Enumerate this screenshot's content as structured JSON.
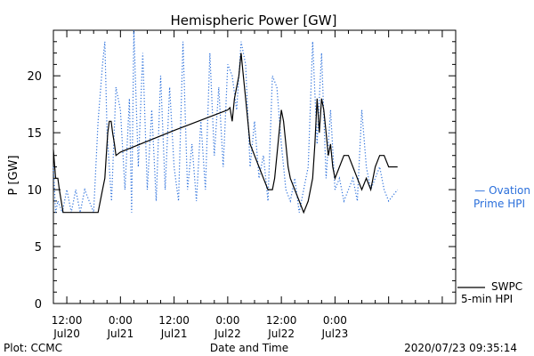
{
  "chart_data": {
    "type": "line",
    "title": "Hemispheric Power [GW]",
    "xlabel": "Date and Time",
    "ylabel": "P [GW]",
    "ylim": [
      0,
      24
    ],
    "y_ticks": [
      0,
      5,
      10,
      15,
      20
    ],
    "x_axis": {
      "start": "2020-07-20T09:00",
      "end": "2020-07-24T03:00",
      "ticks": [
        {
          "time": "2020-07-20T12:00",
          "hour": "12:00",
          "day": "Jul20"
        },
        {
          "time": "2020-07-21T00:00",
          "hour": "0:00",
          "day": "Jul21"
        },
        {
          "time": "2020-07-21T12:00",
          "hour": "12:00",
          "day": "Jul21"
        },
        {
          "time": "2020-07-22T00:00",
          "hour": "0:00",
          "day": "Jul22"
        },
        {
          "time": "2020-07-22T12:00",
          "hour": "12:00",
          "day": "Jul22"
        },
        {
          "time": "2020-07-23T00:00",
          "hour": "0:00",
          "day": "Jul23"
        }
      ]
    },
    "series": [
      {
        "name": "SWPC 5-min HPI",
        "label_lines": [
          "SWPC",
          "5-min HPI"
        ],
        "color": "#000000",
        "style": "solid",
        "points": [
          [
            "2020-07-20T09:00",
            13.5
          ],
          [
            "2020-07-20T09:30",
            11
          ],
          [
            "2020-07-20T10:00",
            11
          ],
          [
            "2020-07-20T10:20",
            10
          ],
          [
            "2020-07-20T10:45",
            9
          ],
          [
            "2020-07-20T11:10",
            8
          ],
          [
            "2020-07-20T14:00",
            8
          ],
          [
            "2020-07-20T17:00",
            8
          ],
          [
            "2020-07-20T19:00",
            8
          ],
          [
            "2020-07-20T19:30",
            9
          ],
          [
            "2020-07-20T20:00",
            10
          ],
          [
            "2020-07-20T20:30",
            11
          ],
          [
            "2020-07-20T20:50",
            13
          ],
          [
            "2020-07-20T21:10",
            15
          ],
          [
            "2020-07-20T21:30",
            16
          ],
          [
            "2020-07-20T21:55",
            16
          ],
          [
            "2020-07-20T22:15",
            15
          ],
          [
            "2020-07-20T22:40",
            14
          ],
          [
            "2020-07-20T23:00",
            13
          ],
          [
            "2020-07-21T00:00",
            13.3
          ],
          [
            "2020-07-21T12:00",
            15.2
          ],
          [
            "2020-07-22T00:00",
            17
          ],
          [
            "2020-07-22T00:30",
            17.2
          ],
          [
            "2020-07-22T01:00",
            16
          ],
          [
            "2020-07-22T01:30",
            18
          ],
          [
            "2020-07-22T02:00",
            19
          ],
          [
            "2020-07-22T02:30",
            20
          ],
          [
            "2020-07-22T03:00",
            22
          ],
          [
            "2020-07-22T03:30",
            20
          ],
          [
            "2020-07-22T04:00",
            18
          ],
          [
            "2020-07-22T04:30",
            16
          ],
          [
            "2020-07-22T05:00",
            14
          ],
          [
            "2020-07-22T06:00",
            13
          ],
          [
            "2020-07-22T07:00",
            12
          ],
          [
            "2020-07-22T08:00",
            11
          ],
          [
            "2020-07-22T09:00",
            10
          ],
          [
            "2020-07-22T10:00",
            10
          ],
          [
            "2020-07-22T10:30",
            11
          ],
          [
            "2020-07-22T11:00",
            13
          ],
          [
            "2020-07-22T11:30",
            15
          ],
          [
            "2020-07-22T12:00",
            17
          ],
          [
            "2020-07-22T12:30",
            16
          ],
          [
            "2020-07-22T13:00",
            14
          ],
          [
            "2020-07-22T13:30",
            12
          ],
          [
            "2020-07-22T14:00",
            11
          ],
          [
            "2020-07-22T15:00",
            10
          ],
          [
            "2020-07-22T16:00",
            9
          ],
          [
            "2020-07-22T17:00",
            8
          ],
          [
            "2020-07-22T18:00",
            9
          ],
          [
            "2020-07-22T19:00",
            11
          ],
          [
            "2020-07-22T19:30",
            14
          ],
          [
            "2020-07-22T20:00",
            18
          ],
          [
            "2020-07-22T20:30",
            15
          ],
          [
            "2020-07-22T21:00",
            18
          ],
          [
            "2020-07-22T21:30",
            17
          ],
          [
            "2020-07-22T22:00",
            15
          ],
          [
            "2020-07-22T22:30",
            13
          ],
          [
            "2020-07-22T23:00",
            14
          ],
          [
            "2020-07-22T23:30",
            12
          ],
          [
            "2020-07-23T00:00",
            11
          ],
          [
            "2020-07-23T01:00",
            12
          ],
          [
            "2020-07-23T02:00",
            13
          ],
          [
            "2020-07-23T03:00",
            13
          ],
          [
            "2020-07-23T04:00",
            12
          ],
          [
            "2020-07-23T05:00",
            11
          ],
          [
            "2020-07-23T06:00",
            10
          ],
          [
            "2020-07-23T07:00",
            11
          ],
          [
            "2020-07-23T08:00",
            10
          ],
          [
            "2020-07-23T09:00",
            12
          ],
          [
            "2020-07-23T10:00",
            13
          ],
          [
            "2020-07-23T11:00",
            13
          ],
          [
            "2020-07-23T12:00",
            12
          ],
          [
            "2020-07-23T14:00",
            12
          ]
        ]
      },
      {
        "name": "Ovation Prime HPI",
        "label_lines": [
          "— Ovation",
          "Prime HPI"
        ],
        "label_value": 10,
        "color": "#2a6fdb",
        "style": "dotted",
        "points": [
          [
            "2020-07-20T09:00",
            12
          ],
          [
            "2020-07-20T09:30",
            8
          ],
          [
            "2020-07-20T10:00",
            9
          ],
          [
            "2020-07-20T11:00",
            8
          ],
          [
            "2020-07-20T12:00",
            10
          ],
          [
            "2020-07-20T13:00",
            8
          ],
          [
            "2020-07-20T14:00",
            10
          ],
          [
            "2020-07-20T15:00",
            8
          ],
          [
            "2020-07-20T16:00",
            10
          ],
          [
            "2020-07-20T17:00",
            9
          ],
          [
            "2020-07-20T18:00",
            8
          ],
          [
            "2020-07-20T19:00",
            16
          ],
          [
            "2020-07-20T20:00",
            21
          ],
          [
            "2020-07-20T20:30",
            23
          ],
          [
            "2020-07-20T21:00",
            15
          ],
          [
            "2020-07-20T22:00",
            9
          ],
          [
            "2020-07-20T23:00",
            19
          ],
          [
            "2020-07-21T00:00",
            17
          ],
          [
            "2020-07-21T01:00",
            10
          ],
          [
            "2020-07-21T02:00",
            18
          ],
          [
            "2020-07-21T02:30",
            8
          ],
          [
            "2020-07-21T03:00",
            24
          ],
          [
            "2020-07-21T04:00",
            12
          ],
          [
            "2020-07-21T05:00",
            22
          ],
          [
            "2020-07-21T06:00",
            10
          ],
          [
            "2020-07-21T07:00",
            17
          ],
          [
            "2020-07-21T08:00",
            9
          ],
          [
            "2020-07-21T09:00",
            20
          ],
          [
            "2020-07-21T10:00",
            10
          ],
          [
            "2020-07-21T11:00",
            19
          ],
          [
            "2020-07-21T12:00",
            12
          ],
          [
            "2020-07-21T13:00",
            9
          ],
          [
            "2020-07-21T14:00",
            23
          ],
          [
            "2020-07-21T15:00",
            10
          ],
          [
            "2020-07-21T16:00",
            14
          ],
          [
            "2020-07-21T17:00",
            9
          ],
          [
            "2020-07-21T18:00",
            16
          ],
          [
            "2020-07-21T19:00",
            10
          ],
          [
            "2020-07-21T20:00",
            22
          ],
          [
            "2020-07-21T21:00",
            13
          ],
          [
            "2020-07-21T22:00",
            19
          ],
          [
            "2020-07-21T23:00",
            12
          ],
          [
            "2020-07-22T00:00",
            21
          ],
          [
            "2020-07-22T01:00",
            20
          ],
          [
            "2020-07-22T02:00",
            17
          ],
          [
            "2020-07-22T03:00",
            23
          ],
          [
            "2020-07-22T04:00",
            21
          ],
          [
            "2020-07-22T05:00",
            12
          ],
          [
            "2020-07-22T06:00",
            16
          ],
          [
            "2020-07-22T07:00",
            11
          ],
          [
            "2020-07-22T08:00",
            13
          ],
          [
            "2020-07-22T09:00",
            9
          ],
          [
            "2020-07-22T10:00",
            20
          ],
          [
            "2020-07-22T11:00",
            19
          ],
          [
            "2020-07-22T12:00",
            14
          ],
          [
            "2020-07-22T13:00",
            10
          ],
          [
            "2020-07-22T14:00",
            9
          ],
          [
            "2020-07-22T15:00",
            11
          ],
          [
            "2020-07-22T16:00",
            8
          ],
          [
            "2020-07-22T17:00",
            10
          ],
          [
            "2020-07-22T18:00",
            12
          ],
          [
            "2020-07-22T19:00",
            23
          ],
          [
            "2020-07-22T20:00",
            14
          ],
          [
            "2020-07-22T21:00",
            22
          ],
          [
            "2020-07-22T22:00",
            11
          ],
          [
            "2020-07-22T23:00",
            17
          ],
          [
            "2020-07-23T00:00",
            10
          ],
          [
            "2020-07-23T01:00",
            11
          ],
          [
            "2020-07-23T02:00",
            9
          ],
          [
            "2020-07-23T03:00",
            10
          ],
          [
            "2020-07-23T04:00",
            11
          ],
          [
            "2020-07-23T05:00",
            9
          ],
          [
            "2020-07-23T06:00",
            17
          ],
          [
            "2020-07-23T07:00",
            12
          ],
          [
            "2020-07-23T08:00",
            10
          ],
          [
            "2020-07-23T09:00",
            11
          ],
          [
            "2020-07-23T10:00",
            12
          ],
          [
            "2020-07-23T11:00",
            10
          ],
          [
            "2020-07-23T12:00",
            9
          ],
          [
            "2020-07-23T14:00",
            10
          ]
        ]
      }
    ],
    "footer": {
      "left": "Plot: CCMC",
      "right": "2020/07/23 09:35:14"
    }
  }
}
